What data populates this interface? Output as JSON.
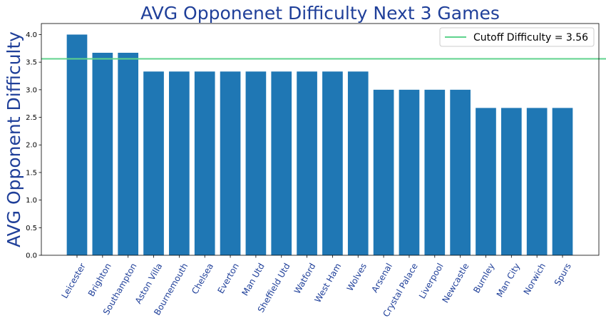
{
  "chart_data": {
    "type": "bar",
    "title": "AVG Opponenet Difficulty Next 3 Games",
    "xlabel": "",
    "ylabel": "AVG Opponent Difficulty",
    "categories": [
      "Leicester",
      "Brighton",
      "Southampton",
      "Aston Villa",
      "Bournemouth",
      "Chelsea",
      "Everton",
      "Man Utd",
      "Sheffield Utd",
      "Watford",
      "West Ham",
      "Wolves",
      "Arsenal",
      "Crystal Palace",
      "Liverpool",
      "Newcastle",
      "Burnley",
      "Man City",
      "Norwich",
      "Spurs"
    ],
    "values": [
      4.0,
      3.67,
      3.67,
      3.33,
      3.33,
      3.33,
      3.33,
      3.33,
      3.33,
      3.33,
      3.33,
      3.33,
      3.0,
      3.0,
      3.0,
      3.0,
      2.67,
      2.67,
      2.67,
      2.67
    ],
    "ylim": [
      0,
      4.2
    ],
    "yticks": [
      "0.0",
      "0.5",
      "1.0",
      "1.5",
      "2.0",
      "2.5",
      "3.0",
      "3.5",
      "4.0"
    ],
    "bar_color": "#1f77b4",
    "reference_line": {
      "label": "Cutoff Difficulty = 3.56",
      "value": 3.56,
      "color": "#5fd38d"
    },
    "legend_position": "top-right",
    "grid": false
  }
}
